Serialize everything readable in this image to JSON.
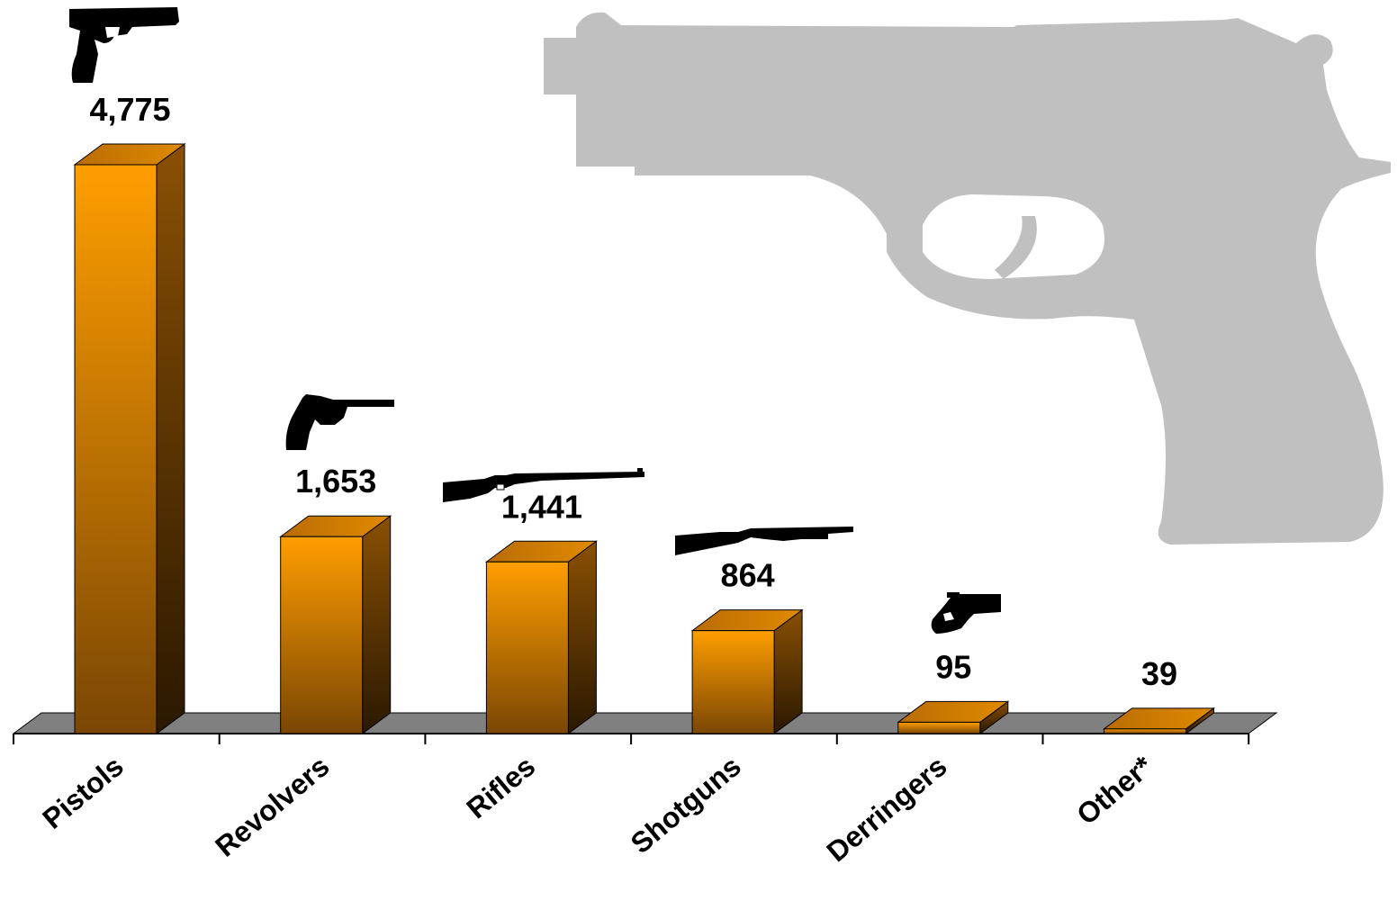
{
  "chart_data": {
    "type": "bar",
    "title": "",
    "xlabel": "",
    "ylabel": "",
    "categories": [
      "Pistols",
      "Revolvers",
      "Rifles",
      "Shotguns",
      "Derringers",
      "Other*"
    ],
    "values": [
      4775,
      1653,
      1441,
      864,
      95,
      39
    ],
    "value_labels": [
      "4,775",
      "1,653",
      "1,441",
      "864",
      "95",
      "39"
    ],
    "category_icons": [
      "pistol-icon",
      "revolver-icon",
      "rifle-icon",
      "shotgun-icon",
      "derringer-icon",
      ""
    ],
    "background_icon": "large-pistol-silhouette-icon",
    "ylim": [
      0,
      4775
    ],
    "grid": false,
    "legend": "none",
    "style": "3d-bar",
    "colors": {
      "bar_front_top": "#ff9e00",
      "bar_front_bottom": "#7a4604",
      "bar_side_top": "#8a5004",
      "bar_side_bottom": "#2a1800",
      "floor": "#808080",
      "background_silhouette": "#c0c0c0",
      "icon": "#000000"
    }
  }
}
